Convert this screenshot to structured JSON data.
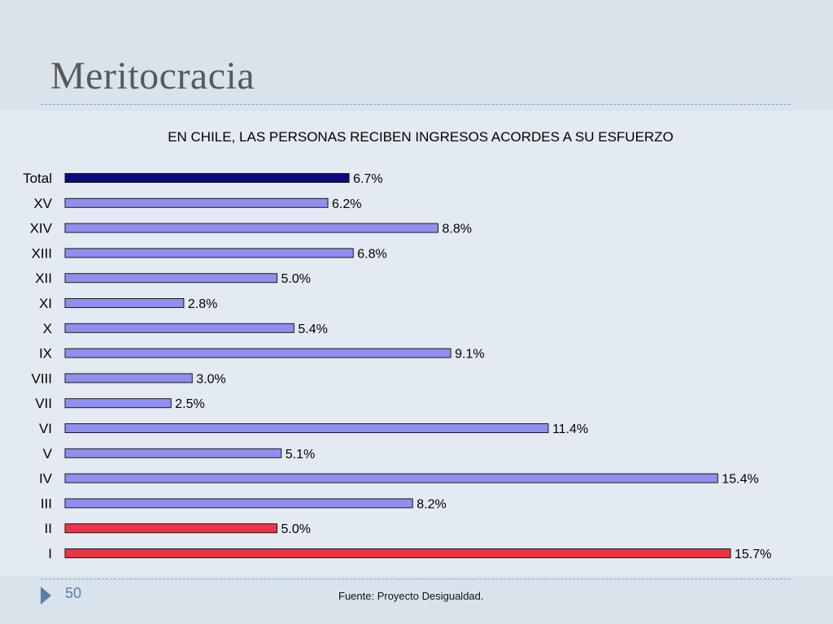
{
  "slide": {
    "title": "Meritocracia",
    "number": "50",
    "source": "Fuente: Proyecto Desigualdad."
  },
  "colors": {
    "total": "#0a0a7a",
    "regular": "#8f8ff0",
    "highlight": "#ee3344"
  },
  "chart_data": {
    "type": "bar",
    "orientation": "horizontal",
    "title": "EN CHILE, LAS PERSONAS RECIBEN INGRESOS ACORDES A SU ESFUERZO",
    "categories": [
      "Total",
      "XV",
      "XIV",
      "XIII",
      "XII",
      "XI",
      "X",
      "IX",
      "VIII",
      "VII",
      "VI",
      "V",
      "IV",
      "III",
      "II",
      "I"
    ],
    "values": [
      6.7,
      6.2,
      8.8,
      6.8,
      5.0,
      2.8,
      5.4,
      9.1,
      3.0,
      2.5,
      11.4,
      5.1,
      15.4,
      8.2,
      5.0,
      15.7
    ],
    "data_labels": [
      "6.7%",
      "6.2%",
      "8.8%",
      "6.8%",
      "5.0%",
      "2.8%",
      "5.4%",
      "9.1%",
      "3.0%",
      "2.5%",
      "11.4%",
      "5.1%",
      "15.4%",
      "8.2%",
      "5.0%",
      "15.7%"
    ],
    "bar_color_keys": [
      "total",
      "regular",
      "regular",
      "regular",
      "regular",
      "regular",
      "regular",
      "regular",
      "regular",
      "regular",
      "regular",
      "regular",
      "regular",
      "regular",
      "highlight",
      "highlight"
    ],
    "xlim": [
      0,
      15.7
    ],
    "grid": false,
    "xlabel": "",
    "ylabel": ""
  }
}
